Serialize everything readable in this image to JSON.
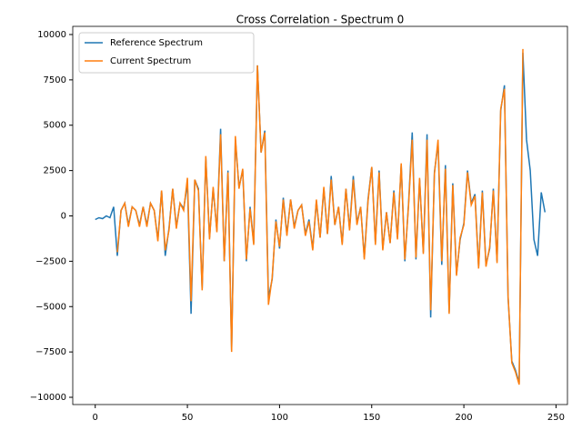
{
  "chart_data": {
    "type": "line",
    "title": "Cross Correlation - Spectrum 0",
    "x": [
      0,
      2,
      4,
      6,
      8,
      10,
      12,
      14,
      16,
      18,
      20,
      22,
      24,
      26,
      28,
      30,
      32,
      34,
      36,
      38,
      40,
      42,
      44,
      46,
      48,
      50,
      52,
      54,
      56,
      58,
      60,
      62,
      64,
      66,
      68,
      70,
      72,
      74,
      76,
      78,
      80,
      82,
      84,
      86,
      88,
      90,
      92,
      94,
      96,
      98,
      100,
      102,
      104,
      106,
      108,
      110,
      112,
      114,
      116,
      118,
      120,
      122,
      124,
      126,
      128,
      130,
      132,
      134,
      136,
      138,
      140,
      142,
      144,
      146,
      148,
      150,
      152,
      154,
      156,
      158,
      160,
      162,
      164,
      166,
      168,
      170,
      172,
      174,
      176,
      178,
      180,
      182,
      184,
      186,
      188,
      190,
      192,
      194,
      196,
      198,
      200,
      202,
      204,
      206,
      208,
      210,
      212,
      214,
      216,
      218,
      220,
      222,
      224,
      226,
      228,
      230,
      232,
      234,
      236,
      238,
      240,
      242,
      244
    ],
    "series": [
      {
        "name": "Reference Spectrum",
        "color": "#1f77b4",
        "values": [
          -200,
          -100,
          -150,
          0,
          -100,
          500,
          -2200,
          300,
          700,
          -500,
          500,
          300,
          -500,
          500,
          -500,
          700,
          300,
          -1300,
          1400,
          -2200,
          -700,
          1500,
          -600,
          700,
          400,
          1800,
          -5400,
          2000,
          1500,
          -4000,
          3200,
          -1200,
          1500,
          -800,
          4800,
          -2500,
          2500,
          -7400,
          4200,
          1600,
          2500,
          -2500,
          500,
          -1500,
          8300,
          3500,
          4700,
          -4500,
          -3500,
          -200,
          -1800,
          1000,
          -1000,
          900,
          -600,
          300,
          600,
          -1000,
          -200,
          -1800,
          800,
          -1200,
          1500,
          -1000,
          2200,
          -500,
          500,
          -1500,
          1500,
          -700,
          2200,
          -400,
          500,
          -2300,
          900,
          2700,
          -1500,
          2500,
          -1800,
          200,
          -1500,
          1400,
          -1200,
          2800,
          -2500,
          700,
          4600,
          -2400,
          2000,
          -2000,
          4500,
          -5600,
          2400,
          4000,
          -2700,
          2800,
          -5300,
          1800,
          -3200,
          -1300,
          -400,
          2500,
          700,
          1200,
          -2800,
          1400,
          -2700,
          -1800,
          1500,
          -2500,
          5800,
          7200,
          -4500,
          -8000,
          -8500,
          -9200,
          9000,
          4200,
          2500,
          -1300,
          -2200,
          1300,
          200
        ]
      },
      {
        "name": "Current Spectrum",
        "color": "#ff7f0e",
        "values": [
          null,
          null,
          null,
          null,
          null,
          null,
          -2000,
          300,
          700,
          -600,
          500,
          300,
          -600,
          500,
          -600,
          700,
          300,
          -1400,
          1400,
          -1900,
          -800,
          1500,
          -700,
          700,
          300,
          2100,
          -4700,
          2000,
          1400,
          -4100,
          3300,
          -1300,
          1600,
          -900,
          4500,
          -2500,
          2400,
          -7500,
          4400,
          1500,
          2600,
          -2400,
          400,
          -1600,
          8300,
          3500,
          4600,
          -4900,
          -3400,
          -300,
          -1700,
          900,
          -1100,
          900,
          -700,
          300,
          600,
          -1100,
          -300,
          -1900,
          900,
          -1200,
          1600,
          -1000,
          2000,
          -500,
          500,
          -1600,
          1500,
          -800,
          2000,
          -500,
          500,
          -2400,
          800,
          2700,
          -1600,
          2400,
          -1900,
          200,
          -1500,
          1300,
          -1300,
          2900,
          -2400,
          600,
          4200,
          -2300,
          2100,
          -2100,
          4200,
          -5200,
          2300,
          4200,
          -2500,
          2600,
          -5400,
          1700,
          -3300,
          -1200,
          -500,
          2400,
          600,
          1100,
          -2900,
          1300,
          -2800,
          -1700,
          1400,
          -2600,
          5900,
          7000,
          -4400,
          -8100,
          -8600,
          -9300,
          9200,
          null,
          null,
          null,
          null,
          null,
          null
        ]
      }
    ],
    "xlim": [
      -12.2,
      256.2
    ],
    "ylim": [
      -10400,
      10450
    ],
    "xticks": [
      0,
      50,
      100,
      150,
      200,
      250
    ],
    "yticks": [
      {
        "value": -10000,
        "label": "−10000"
      },
      {
        "value": -7500,
        "label": "−7500"
      },
      {
        "value": -5000,
        "label": "−5000"
      },
      {
        "value": -2500,
        "label": "−2500"
      },
      0,
      2500,
      5000,
      7500,
      10000
    ],
    "legend": "upper left"
  }
}
